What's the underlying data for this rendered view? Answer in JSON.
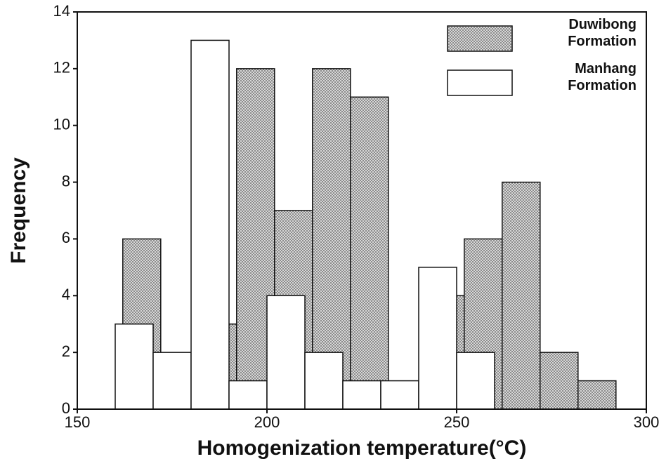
{
  "chart_data": {
    "type": "histogram",
    "xlabel": "Homogenization temperature(°C)",
    "ylabel": "Frequency",
    "series": [
      {
        "name": "Duwibong Formation",
        "color": "#b8b8b8",
        "bins": [
          162,
          172,
          182,
          192,
          202,
          212,
          222,
          232,
          242,
          252,
          262,
          272,
          282,
          292
        ],
        "values": [
          6,
          0,
          3,
          12,
          7,
          12,
          11,
          0,
          4,
          6,
          8,
          2,
          1
        ]
      },
      {
        "name": "Manhang Formation",
        "color": "#ffffff",
        "bins": [
          160,
          170,
          180,
          190,
          200,
          210,
          220,
          230,
          240,
          250,
          260
        ],
        "values": [
          3,
          2,
          13,
          1,
          4,
          2,
          1,
          1,
          5,
          2
        ]
      }
    ],
    "xlim": [
      150,
      300
    ],
    "xticks": [
      150,
      200,
      250,
      300
    ],
    "ylim": [
      0,
      14
    ],
    "yticks": [
      0,
      2,
      4,
      6,
      8,
      10,
      12,
      14
    ],
    "legend": "upper right"
  }
}
